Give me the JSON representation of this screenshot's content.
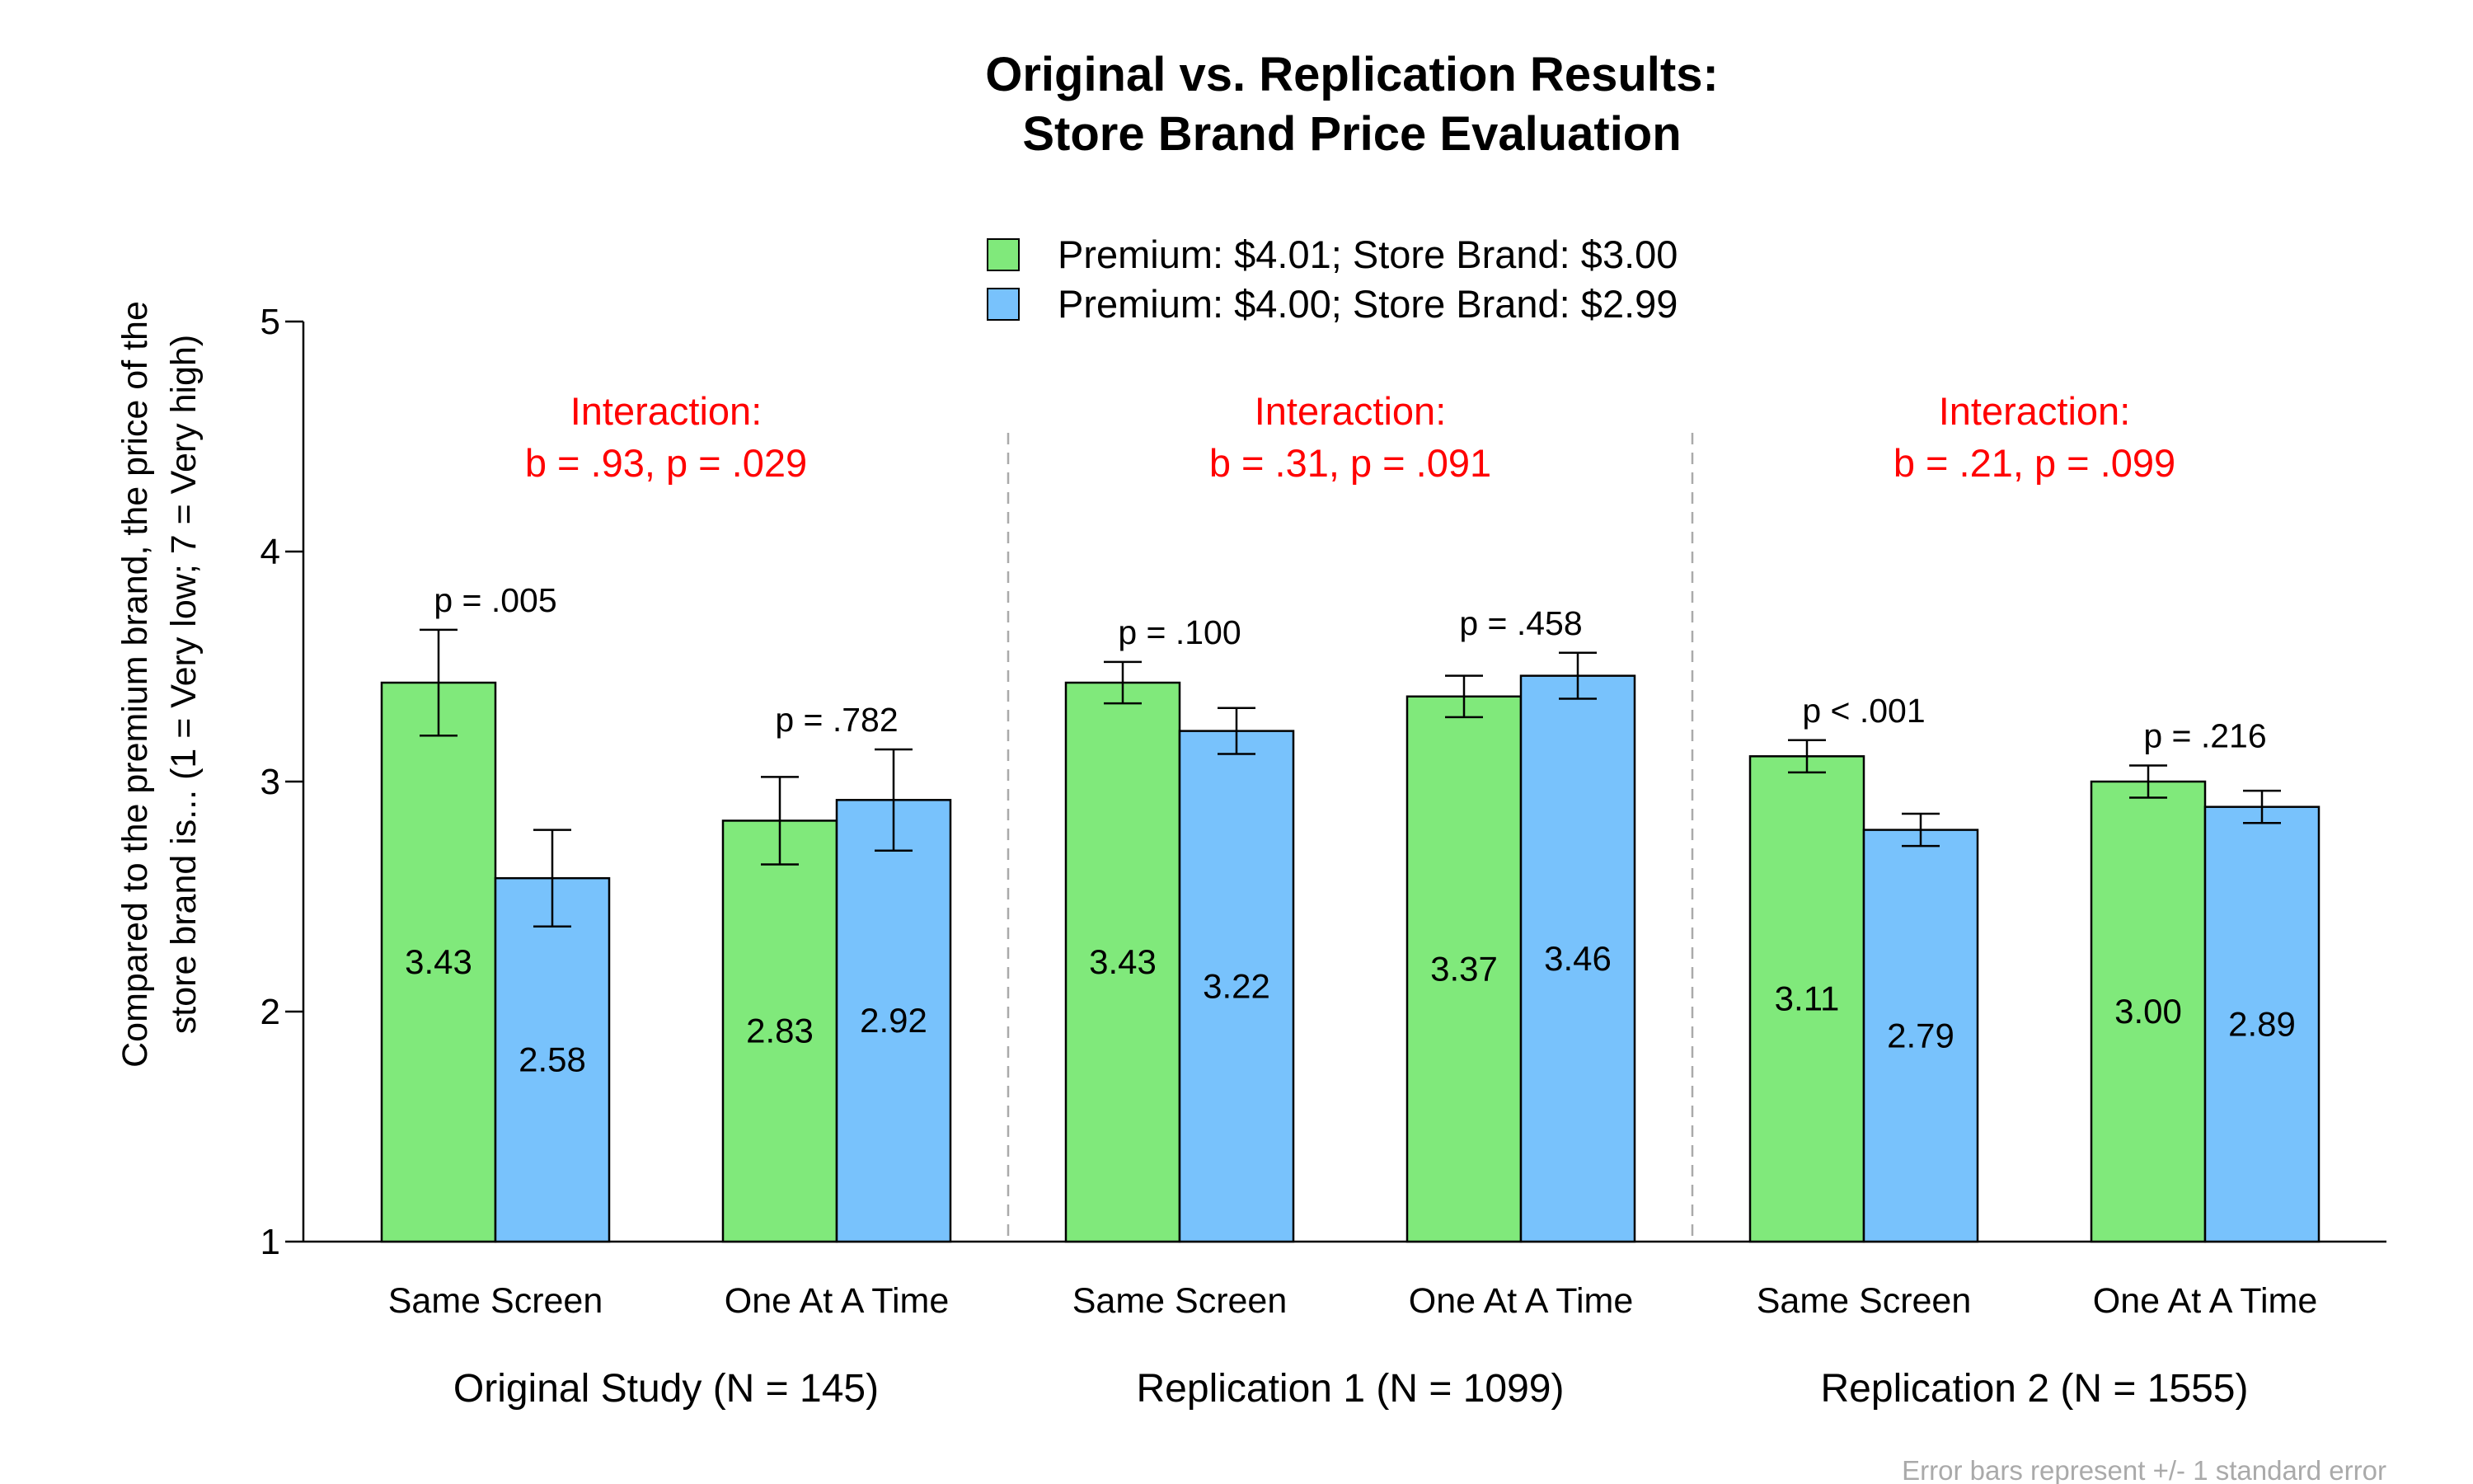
{
  "chart_data": {
    "type": "bar",
    "title": [
      "Original vs. Replication Results:",
      "Store Brand Price Evaluation"
    ],
    "ylabel": [
      "Compared to the premium brand, the price of the",
      "store brand is... (1 = Very low; 7 = Very high)"
    ],
    "ylim": [
      1,
      5
    ],
    "yticks": [
      1,
      2,
      3,
      4,
      5
    ],
    "legend_position": "top-center",
    "series": [
      {
        "name": "Premium: $4.01; Store Brand: $3.00",
        "color": "#80e97b"
      },
      {
        "name": "Premium: $4.00; Store Brand: $2.99",
        "color": "#78c2fc"
      }
    ],
    "groups": [
      {
        "label": "Original Study (N = 145)",
        "interaction": [
          "Interaction:",
          "b = .93, p = .029"
        ],
        "conditions": [
          {
            "label": "Same Screen",
            "p_value": "p = .005",
            "values": [
              3.43,
              2.58
            ],
            "errors": [
              0.23,
              0.21
            ]
          },
          {
            "label": "One At A Time",
            "p_value": "p = .782",
            "values": [
              2.83,
              2.92
            ],
            "errors": [
              0.19,
              0.22
            ]
          }
        ]
      },
      {
        "label": "Replication 1 (N = 1099)",
        "interaction": [
          "Interaction:",
          "b = .31, p = .091"
        ],
        "conditions": [
          {
            "label": "Same Screen",
            "p_value": "p = .100",
            "values": [
              3.43,
              3.22
            ],
            "errors": [
              0.09,
              0.1
            ]
          },
          {
            "label": "One At A Time",
            "p_value": "p = .458",
            "values": [
              3.37,
              3.46
            ],
            "errors": [
              0.09,
              0.1
            ]
          }
        ]
      },
      {
        "label": "Replication 2 (N = 1555)",
        "interaction": [
          "Interaction:",
          "b = .21, p = .099"
        ],
        "conditions": [
          {
            "label": "Same Screen",
            "p_value": "p < .001",
            "values": [
              3.11,
              2.79
            ],
            "errors": [
              0.07,
              0.07
            ]
          },
          {
            "label": "One At A Time",
            "p_value": "p = .216",
            "values": [
              3.0,
              2.89
            ],
            "errors": [
              0.07,
              0.07
            ]
          }
        ]
      }
    ],
    "footnote": "Error bars represent +/- 1 standard error"
  }
}
